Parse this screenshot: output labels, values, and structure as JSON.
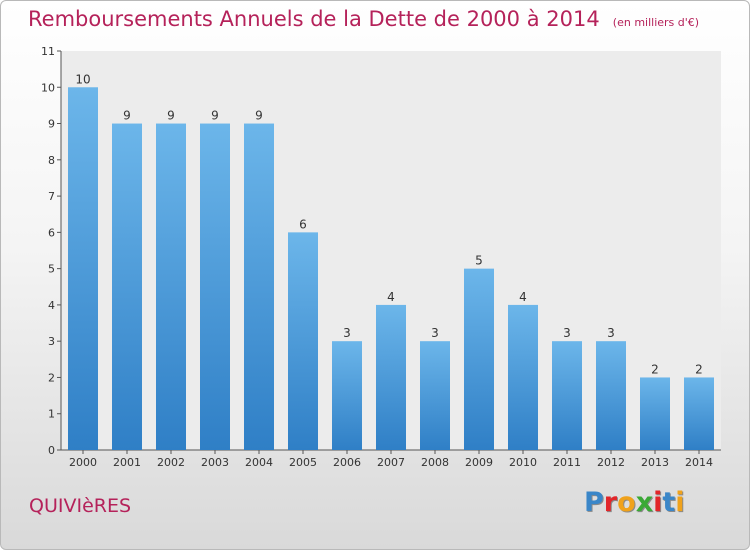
{
  "header": {
    "title": "Remboursements Annuels de la Dette de 2000 à 2014",
    "unit": "(en milliers d'€)"
  },
  "footer": {
    "place": "QUIVIèRES",
    "brand": "Proxiti",
    "brand_colors": [
      "#3a86c8",
      "#e2262a",
      "#f0a21b",
      "#3aa935",
      "#e2262a",
      "#3a86c8",
      "#f0a21b"
    ]
  },
  "colors": {
    "bar_light": "#6cb6ea",
    "bar_dark": "#2f7fc6",
    "title": "#b5225a"
  },
  "chart_data": {
    "type": "bar",
    "title": "Remboursements Annuels de la Dette de 2000 à 2014",
    "subtitle": "(en milliers d'€)",
    "categories": [
      "2000",
      "2001",
      "2002",
      "2003",
      "2004",
      "2005",
      "2006",
      "2007",
      "2008",
      "2009",
      "2010",
      "2011",
      "2012",
      "2013",
      "2014"
    ],
    "values": [
      10,
      9,
      9,
      9,
      9,
      6,
      3,
      4,
      3,
      5,
      4,
      3,
      3,
      2,
      2
    ],
    "yticks": [
      "0",
      "1",
      "2",
      "3",
      "4",
      "5",
      "6",
      "7",
      "8",
      "9",
      "10",
      "11"
    ],
    "ylim": [
      0,
      11
    ],
    "grid": false,
    "legend": "none"
  }
}
